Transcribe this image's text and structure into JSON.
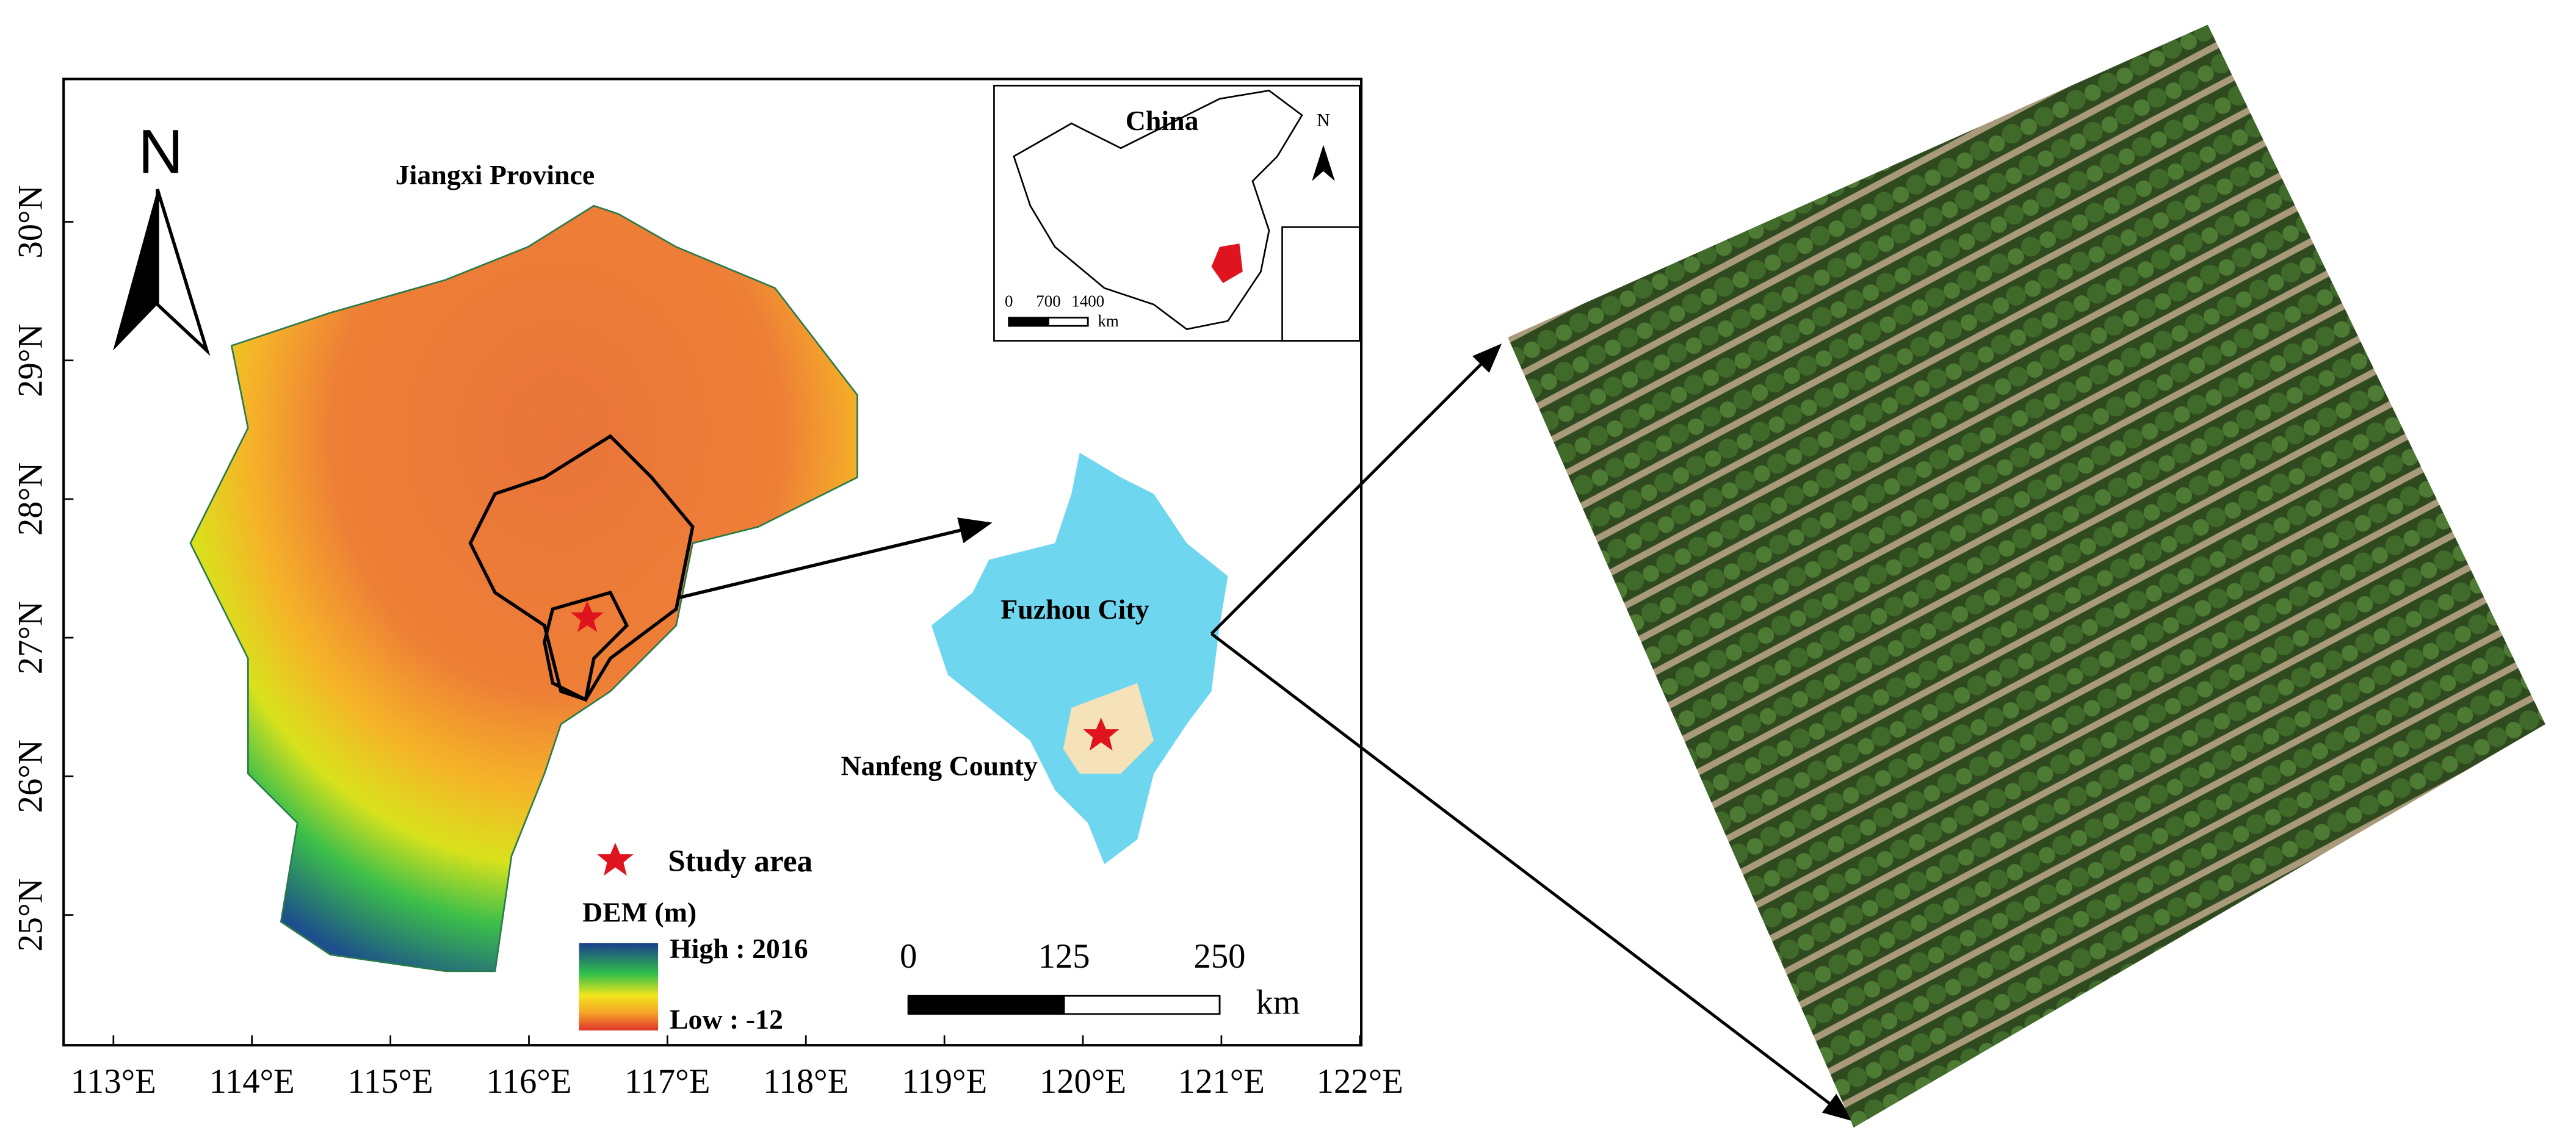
{
  "map": {
    "xlim": [
      112.64,
      122.01
    ],
    "xticks": [
      {
        "value": 113,
        "label": "113°E"
      },
      {
        "value": 114,
        "label": "114°E"
      },
      {
        "value": 115,
        "label": "115°E"
      },
      {
        "value": 116,
        "label": "116°E"
      },
      {
        "value": 117,
        "label": "117°E"
      },
      {
        "value": 118,
        "label": "118°E"
      },
      {
        "value": 119,
        "label": "119°E"
      },
      {
        "value": 120,
        "label": "120°E"
      },
      {
        "value": 121,
        "label": "121°E"
      },
      {
        "value": 122,
        "label": "122°E"
      }
    ],
    "ylim": [
      24.06,
      31.03
    ],
    "yticks": [
      {
        "value": 25,
        "label": "25°N"
      },
      {
        "value": 26,
        "label": "26°N"
      },
      {
        "value": 27,
        "label": "27°N"
      },
      {
        "value": 28,
        "label": "28°N"
      },
      {
        "value": 29,
        "label": "29°N"
      },
      {
        "value": 30,
        "label": "30°N"
      }
    ],
    "north_label": "N",
    "region_label": "Jiangxi Province",
    "inset": {
      "title": "China",
      "north_label": "N",
      "scale_ticks": [
        0,
        700,
        1400
      ],
      "scale_unit": "km"
    },
    "city_label": "Fuzhou City",
    "county_label": "Nanfeng County",
    "legend": {
      "study_area": "Study area",
      "dem_title": "DEM (m)",
      "high": "High : 2016",
      "low": "Low : -12"
    },
    "scale_bar": {
      "ticks": [
        0,
        125,
        250
      ],
      "unit": "km"
    }
  }
}
